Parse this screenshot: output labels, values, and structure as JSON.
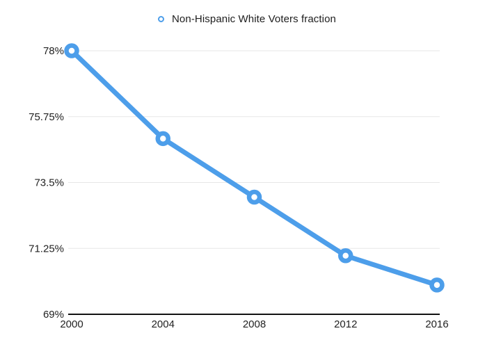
{
  "legend": {
    "label": "Non-Hispanic White Voters fraction"
  },
  "chart_data": {
    "type": "line",
    "title": "Non-Hispanic White Voters fraction",
    "x": [
      2000,
      2004,
      2008,
      2012,
      2016
    ],
    "x_tick_labels": [
      "2000",
      "2004",
      "2008",
      "2012",
      "2016"
    ],
    "series": [
      {
        "name": "Non-Hispanic White Voters fraction",
        "values": [
          78,
          75,
          73,
          71,
          70
        ]
      }
    ],
    "ylim": [
      69,
      78
    ],
    "y_ticks": [
      78,
      75.75,
      73.5,
      71.25,
      69
    ],
    "y_tick_labels": [
      "78%",
      "75.75%",
      "73.5%",
      "71.25%",
      "69%"
    ],
    "grid": true,
    "legend_position": "top-center",
    "marker": "circle-open",
    "colors": {
      "line": "#4D9EEA",
      "marker_fill": "#ffffff",
      "grid": "#e7e7e7",
      "axis": "#111111",
      "tick_text": "#222222"
    },
    "style": {
      "line_width": 7,
      "marker_radius": 7.5,
      "marker_stroke_width": 6.5,
      "tick_font_size": 15
    }
  }
}
